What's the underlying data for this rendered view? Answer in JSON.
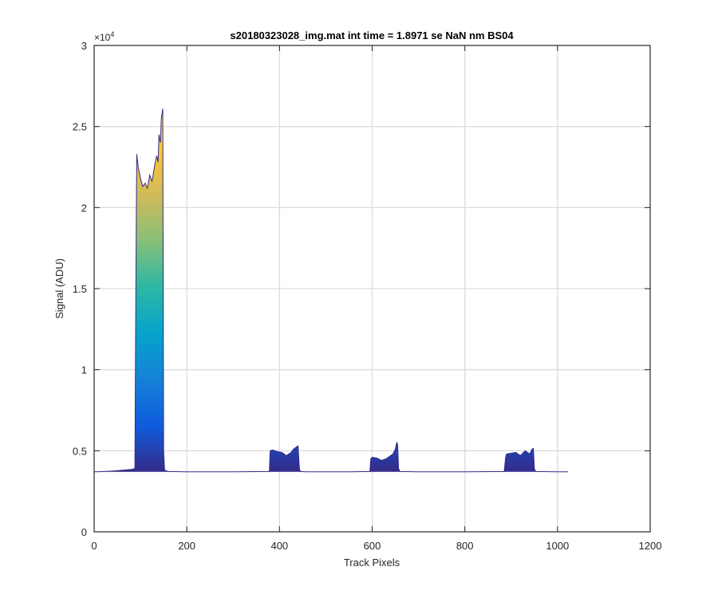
{
  "chart_data": {
    "type": "area",
    "title": "s20180323028_img.mat int time = 1.8971 se  NaN nm BS04",
    "xlabel": "Track Pixels",
    "ylabel": "Signal (ADU)",
    "xlim": [
      0,
      1200
    ],
    "ylim": [
      0,
      30000
    ],
    "x_ticks": [
      0,
      200,
      400,
      600,
      800,
      1000,
      1200
    ],
    "x_tick_labels": [
      "0",
      "200",
      "400",
      "600",
      "800",
      "1000",
      "1200"
    ],
    "y_ticks": [
      0,
      5000,
      10000,
      15000,
      20000,
      25000,
      30000
    ],
    "y_tick_labels": [
      "0",
      "0.5",
      "1",
      "1.5",
      "2",
      "2.5",
      "3"
    ],
    "y_exponent_base": "×10",
    "y_exponent_power": "4",
    "grid": true,
    "colormap": "parula",
    "colormap_colors": [
      "#352a87",
      "#0f5cdd",
      "#1481d6",
      "#06a4ca",
      "#2eb7a4",
      "#87bf77",
      "#d1bb59",
      "#fec832",
      "#f9fb0e"
    ],
    "baseline": 3700,
    "series": [
      {
        "x": [
          0,
          20,
          40,
          60,
          80,
          88,
          90,
          92,
          95,
          100,
          105,
          110,
          115,
          120,
          125,
          130,
          135,
          138,
          140,
          143,
          145,
          148,
          150,
          152,
          160,
          200,
          300,
          378,
          380,
          385,
          395,
          405,
          415,
          425,
          430,
          435,
          440,
          443,
          445,
          460,
          500,
          550,
          595,
          597,
          600,
          610,
          620,
          630,
          640,
          645,
          650,
          653,
          655,
          657,
          660,
          700,
          800,
          885,
          888,
          890,
          900,
          910,
          920,
          930,
          940,
          945,
          948,
          950,
          953,
          1000,
          1023
        ],
        "y": [
          3700,
          3720,
          3750,
          3800,
          3850,
          3900,
          15000,
          23300,
          22500,
          21800,
          21300,
          21500,
          21200,
          22000,
          21600,
          22500,
          23200,
          22800,
          24500,
          24000,
          25500,
          26100,
          5000,
          3800,
          3720,
          3700,
          3700,
          3720,
          5000,
          5050,
          4950,
          4900,
          4700,
          4900,
          5100,
          5200,
          5300,
          3900,
          3720,
          3700,
          3700,
          3700,
          3720,
          4500,
          4600,
          4550,
          4400,
          4500,
          4700,
          4800,
          5100,
          5500,
          5400,
          3900,
          3720,
          3700,
          3700,
          3720,
          4600,
          4800,
          4850,
          4900,
          4700,
          5000,
          4800,
          5100,
          5150,
          3900,
          3720,
          3700,
          3700
        ]
      }
    ]
  }
}
